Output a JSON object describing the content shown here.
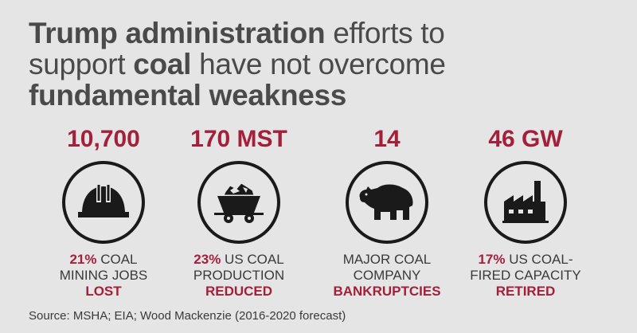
{
  "title": {
    "line1_bold": "Trump administration",
    "line1_rest": " efforts to",
    "line2_pre": "support ",
    "line2_bold": "coal",
    "line2_rest": " have not overcome",
    "line3_bold": "fundamental weakness"
  },
  "stats": [
    {
      "value": "10,700",
      "icon": "hard-hat-icon",
      "pct": "21%",
      "line1": " COAL",
      "line2": "MINING JOBS",
      "emph": "LOST"
    },
    {
      "value": "170 MST",
      "icon": "coal-cart-icon",
      "pct": "23%",
      "line1": " US COAL",
      "line2": "PRODUCTION",
      "emph": "REDUCED"
    },
    {
      "value": "14",
      "icon": "bear-icon",
      "pct": "",
      "line1": "MAJOR COAL",
      "line2": "COMPANY",
      "emph": "BANKRUPTCIES"
    },
    {
      "value": "46 GW",
      "icon": "factory-icon",
      "pct": "17%",
      "line1": " US COAL-",
      "line2": "FIRED CAPACITY",
      "emph": "RETIRED"
    }
  ],
  "source": "Source: MSHA; EIA; Wood Mackenzie (2016-2020 forecast)",
  "colors": {
    "accent": "#a3203b",
    "background": "#e5e5e5",
    "text": "#3d3d3d"
  }
}
